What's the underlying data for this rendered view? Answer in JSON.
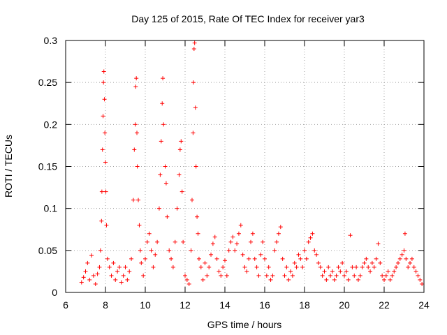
{
  "chart_data": {
    "type": "scatter",
    "title": "Day 125 of 2015, Rate Of TEC Index for receiver yar3",
    "xlabel": "GPS time / hours",
    "ylabel": "ROTI / TECUs",
    "xlim": [
      6,
      24
    ],
    "ylim": [
      0,
      0.3
    ],
    "xticks": [
      "6",
      "8",
      "10",
      "12",
      "14",
      "16",
      "18",
      "20",
      "22",
      "24"
    ],
    "yticks": [
      "0",
      "0.05",
      "0.1",
      "0.15",
      "0.2",
      "0.25",
      "0.3"
    ],
    "grid": true,
    "marker": "+",
    "color": "#ff0000",
    "series": [
      {
        "name": "yar3",
        "points": [
          [
            6.8,
            0.012
          ],
          [
            6.9,
            0.018
          ],
          [
            7.0,
            0.025
          ],
          [
            7.1,
            0.035
          ],
          [
            7.2,
            0.015
          ],
          [
            7.3,
            0.044
          ],
          [
            7.4,
            0.02
          ],
          [
            7.5,
            0.01
          ],
          [
            7.6,
            0.022
          ],
          [
            7.7,
            0.03
          ],
          [
            7.75,
            0.05
          ],
          [
            7.8,
            0.085
          ],
          [
            7.82,
            0.12
          ],
          [
            7.85,
            0.17
          ],
          [
            7.88,
            0.21
          ],
          [
            7.9,
            0.25
          ],
          [
            7.92,
            0.263
          ],
          [
            7.95,
            0.23
          ],
          [
            7.97,
            0.19
          ],
          [
            8.0,
            0.155
          ],
          [
            8.02,
            0.12
          ],
          [
            8.05,
            0.08
          ],
          [
            8.1,
            0.04
          ],
          [
            8.2,
            0.03
          ],
          [
            8.3,
            0.02
          ],
          [
            8.4,
            0.035
          ],
          [
            8.5,
            0.015
          ],
          [
            8.6,
            0.025
          ],
          [
            8.7,
            0.03
          ],
          [
            8.8,
            0.012
          ],
          [
            8.9,
            0.02
          ],
          [
            9.0,
            0.03
          ],
          [
            9.1,
            0.015
          ],
          [
            9.2,
            0.025
          ],
          [
            9.3,
            0.04
          ],
          [
            9.4,
            0.11
          ],
          [
            9.45,
            0.17
          ],
          [
            9.5,
            0.2
          ],
          [
            9.52,
            0.245
          ],
          [
            9.55,
            0.255
          ],
          [
            9.58,
            0.19
          ],
          [
            9.6,
            0.15
          ],
          [
            9.65,
            0.11
          ],
          [
            9.7,
            0.08
          ],
          [
            9.75,
            0.05
          ],
          [
            9.8,
            0.035
          ],
          [
            9.9,
            0.02
          ],
          [
            10.0,
            0.04
          ],
          [
            10.1,
            0.06
          ],
          [
            10.2,
            0.07
          ],
          [
            10.3,
            0.05
          ],
          [
            10.4,
            0.03
          ],
          [
            10.5,
            0.045
          ],
          [
            10.6,
            0.06
          ],
          [
            10.7,
            0.1
          ],
          [
            10.75,
            0.14
          ],
          [
            10.8,
            0.18
          ],
          [
            10.85,
            0.225
          ],
          [
            10.88,
            0.255
          ],
          [
            10.92,
            0.2
          ],
          [
            11.0,
            0.15
          ],
          [
            11.05,
            0.13
          ],
          [
            11.1,
            0.09
          ],
          [
            11.2,
            0.05
          ],
          [
            11.3,
            0.04
          ],
          [
            11.4,
            0.03
          ],
          [
            11.5,
            0.06
          ],
          [
            11.6,
            0.1
          ],
          [
            11.7,
            0.14
          ],
          [
            11.75,
            0.17
          ],
          [
            11.8,
            0.18
          ],
          [
            11.85,
            0.12
          ],
          [
            11.9,
            0.06
          ],
          [
            12.0,
            0.02
          ],
          [
            12.1,
            0.015
          ],
          [
            12.2,
            0.01
          ],
          [
            12.3,
            0.05
          ],
          [
            12.35,
            0.11
          ],
          [
            12.4,
            0.19
          ],
          [
            12.42,
            0.25
          ],
          [
            12.45,
            0.29
          ],
          [
            12.48,
            0.297
          ],
          [
            12.52,
            0.22
          ],
          [
            12.55,
            0.15
          ],
          [
            12.6,
            0.09
          ],
          [
            12.65,
            0.07
          ],
          [
            12.7,
            0.04
          ],
          [
            12.8,
            0.03
          ],
          [
            12.9,
            0.015
          ],
          [
            13.0,
            0.035
          ],
          [
            13.1,
            0.02
          ],
          [
            13.2,
            0.03
          ],
          [
            13.3,
            0.045
          ],
          [
            13.4,
            0.058
          ],
          [
            13.5,
            0.066
          ],
          [
            13.6,
            0.04
          ],
          [
            13.7,
            0.025
          ],
          [
            13.8,
            0.02
          ],
          [
            13.9,
            0.03
          ],
          [
            14.0,
            0.038
          ],
          [
            14.1,
            0.02
          ],
          [
            14.2,
            0.05
          ],
          [
            14.3,
            0.06
          ],
          [
            14.4,
            0.066
          ],
          [
            14.5,
            0.05
          ],
          [
            14.6,
            0.058
          ],
          [
            14.7,
            0.07
          ],
          [
            14.8,
            0.08
          ],
          [
            14.9,
            0.045
          ],
          [
            15.0,
            0.03
          ],
          [
            15.1,
            0.025
          ],
          [
            15.2,
            0.04
          ],
          [
            15.3,
            0.06
          ],
          [
            15.4,
            0.07
          ],
          [
            15.5,
            0.04
          ],
          [
            15.6,
            0.03
          ],
          [
            15.7,
            0.02
          ],
          [
            15.8,
            0.045
          ],
          [
            15.9,
            0.06
          ],
          [
            16.0,
            0.04
          ],
          [
            16.1,
            0.02
          ],
          [
            16.2,
            0.03
          ],
          [
            16.3,
            0.015
          ],
          [
            16.4,
            0.02
          ],
          [
            16.5,
            0.05
          ],
          [
            16.6,
            0.06
          ],
          [
            16.7,
            0.07
          ],
          [
            16.8,
            0.078
          ],
          [
            16.9,
            0.04
          ],
          [
            17.0,
            0.02
          ],
          [
            17.1,
            0.03
          ],
          [
            17.2,
            0.015
          ],
          [
            17.3,
            0.025
          ],
          [
            17.4,
            0.02
          ],
          [
            17.5,
            0.035
          ],
          [
            17.6,
            0.03
          ],
          [
            17.7,
            0.045
          ],
          [
            17.8,
            0.04
          ],
          [
            17.9,
            0.03
          ],
          [
            18.0,
            0.05
          ],
          [
            18.1,
            0.04
          ],
          [
            18.2,
            0.06
          ],
          [
            18.3,
            0.065
          ],
          [
            18.4,
            0.07
          ],
          [
            18.5,
            0.05
          ],
          [
            18.6,
            0.045
          ],
          [
            18.7,
            0.035
          ],
          [
            18.8,
            0.03
          ],
          [
            18.9,
            0.02
          ],
          [
            19.0,
            0.025
          ],
          [
            19.1,
            0.015
          ],
          [
            19.2,
            0.03
          ],
          [
            19.3,
            0.02
          ],
          [
            19.4,
            0.025
          ],
          [
            19.5,
            0.015
          ],
          [
            19.6,
            0.02
          ],
          [
            19.7,
            0.03
          ],
          [
            19.8,
            0.025
          ],
          [
            19.9,
            0.035
          ],
          [
            20.0,
            0.02
          ],
          [
            20.1,
            0.025
          ],
          [
            20.2,
            0.015
          ],
          [
            20.3,
            0.068
          ],
          [
            20.4,
            0.03
          ],
          [
            20.5,
            0.02
          ],
          [
            20.6,
            0.03
          ],
          [
            20.7,
            0.015
          ],
          [
            20.8,
            0.02
          ],
          [
            20.9,
            0.03
          ],
          [
            21.0,
            0.035
          ],
          [
            21.1,
            0.04
          ],
          [
            21.2,
            0.03
          ],
          [
            21.3,
            0.025
          ],
          [
            21.4,
            0.035
          ],
          [
            21.5,
            0.03
          ],
          [
            21.6,
            0.04
          ],
          [
            21.7,
            0.058
          ],
          [
            21.8,
            0.035
          ],
          [
            21.9,
            0.02
          ],
          [
            22.0,
            0.015
          ],
          [
            22.1,
            0.02
          ],
          [
            22.2,
            0.025
          ],
          [
            22.3,
            0.015
          ],
          [
            22.4,
            0.02
          ],
          [
            22.5,
            0.025
          ],
          [
            22.6,
            0.03
          ],
          [
            22.7,
            0.035
          ],
          [
            22.8,
            0.04
          ],
          [
            22.9,
            0.045
          ],
          [
            23.0,
            0.05
          ],
          [
            23.05,
            0.07
          ],
          [
            23.1,
            0.04
          ],
          [
            23.2,
            0.03
          ],
          [
            23.3,
            0.035
          ],
          [
            23.4,
            0.04
          ],
          [
            23.5,
            0.03
          ],
          [
            23.6,
            0.025
          ],
          [
            23.7,
            0.02
          ],
          [
            23.8,
            0.015
          ],
          [
            23.9,
            0.01
          ]
        ]
      }
    ]
  }
}
